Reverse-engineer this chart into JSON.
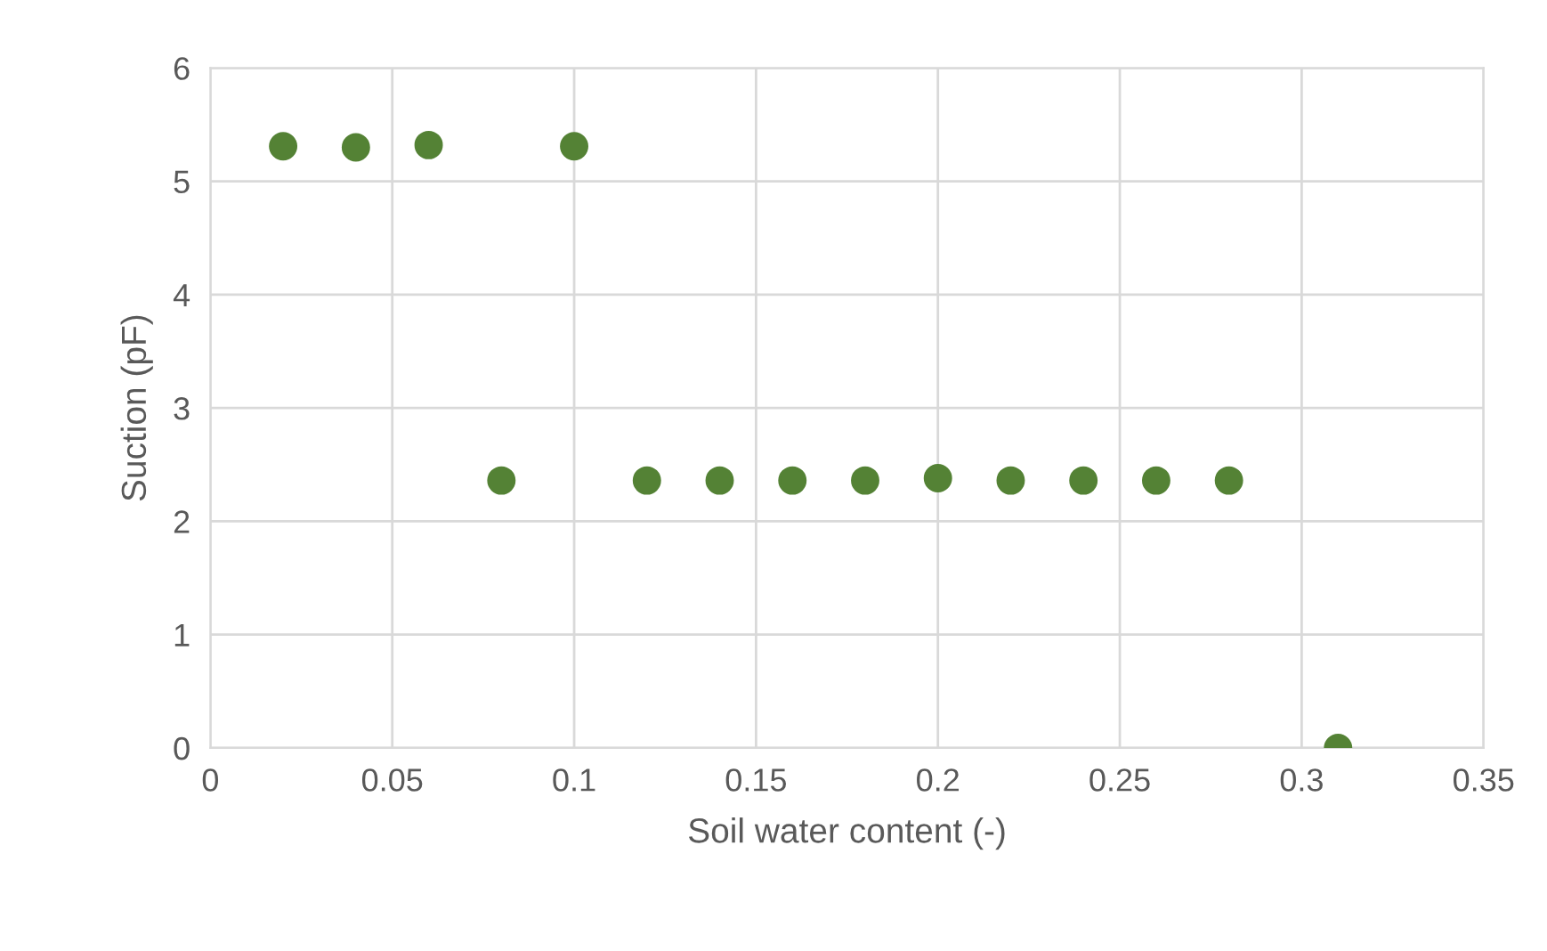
{
  "chart_data": {
    "type": "scatter",
    "xlabel": "Soil water content (-)",
    "ylabel": "Suction (pF)",
    "x": [
      0.02,
      0.04,
      0.06,
      0.1,
      0.08,
      0.12,
      0.14,
      0.16,
      0.18,
      0.2,
      0.22,
      0.24,
      0.26,
      0.28,
      0.31
    ],
    "series": [
      {
        "color": "#548235",
        "values": [
          5.31,
          5.3,
          5.32,
          5.31,
          2.36,
          2.36,
          2.36,
          2.36,
          2.36,
          2.38,
          2.36,
          2.36,
          2.36,
          2.36,
          0
        ]
      }
    ],
    "xlim": [
      0,
      0.35
    ],
    "xticks": [
      0,
      0.05,
      0.1,
      0.15,
      0.2,
      0.25,
      0.3,
      0.35
    ],
    "ylim": [
      0,
      6
    ],
    "yticks": [
      0,
      1,
      2,
      3,
      4,
      5,
      6
    ],
    "grid": true,
    "marker": "circle"
  }
}
